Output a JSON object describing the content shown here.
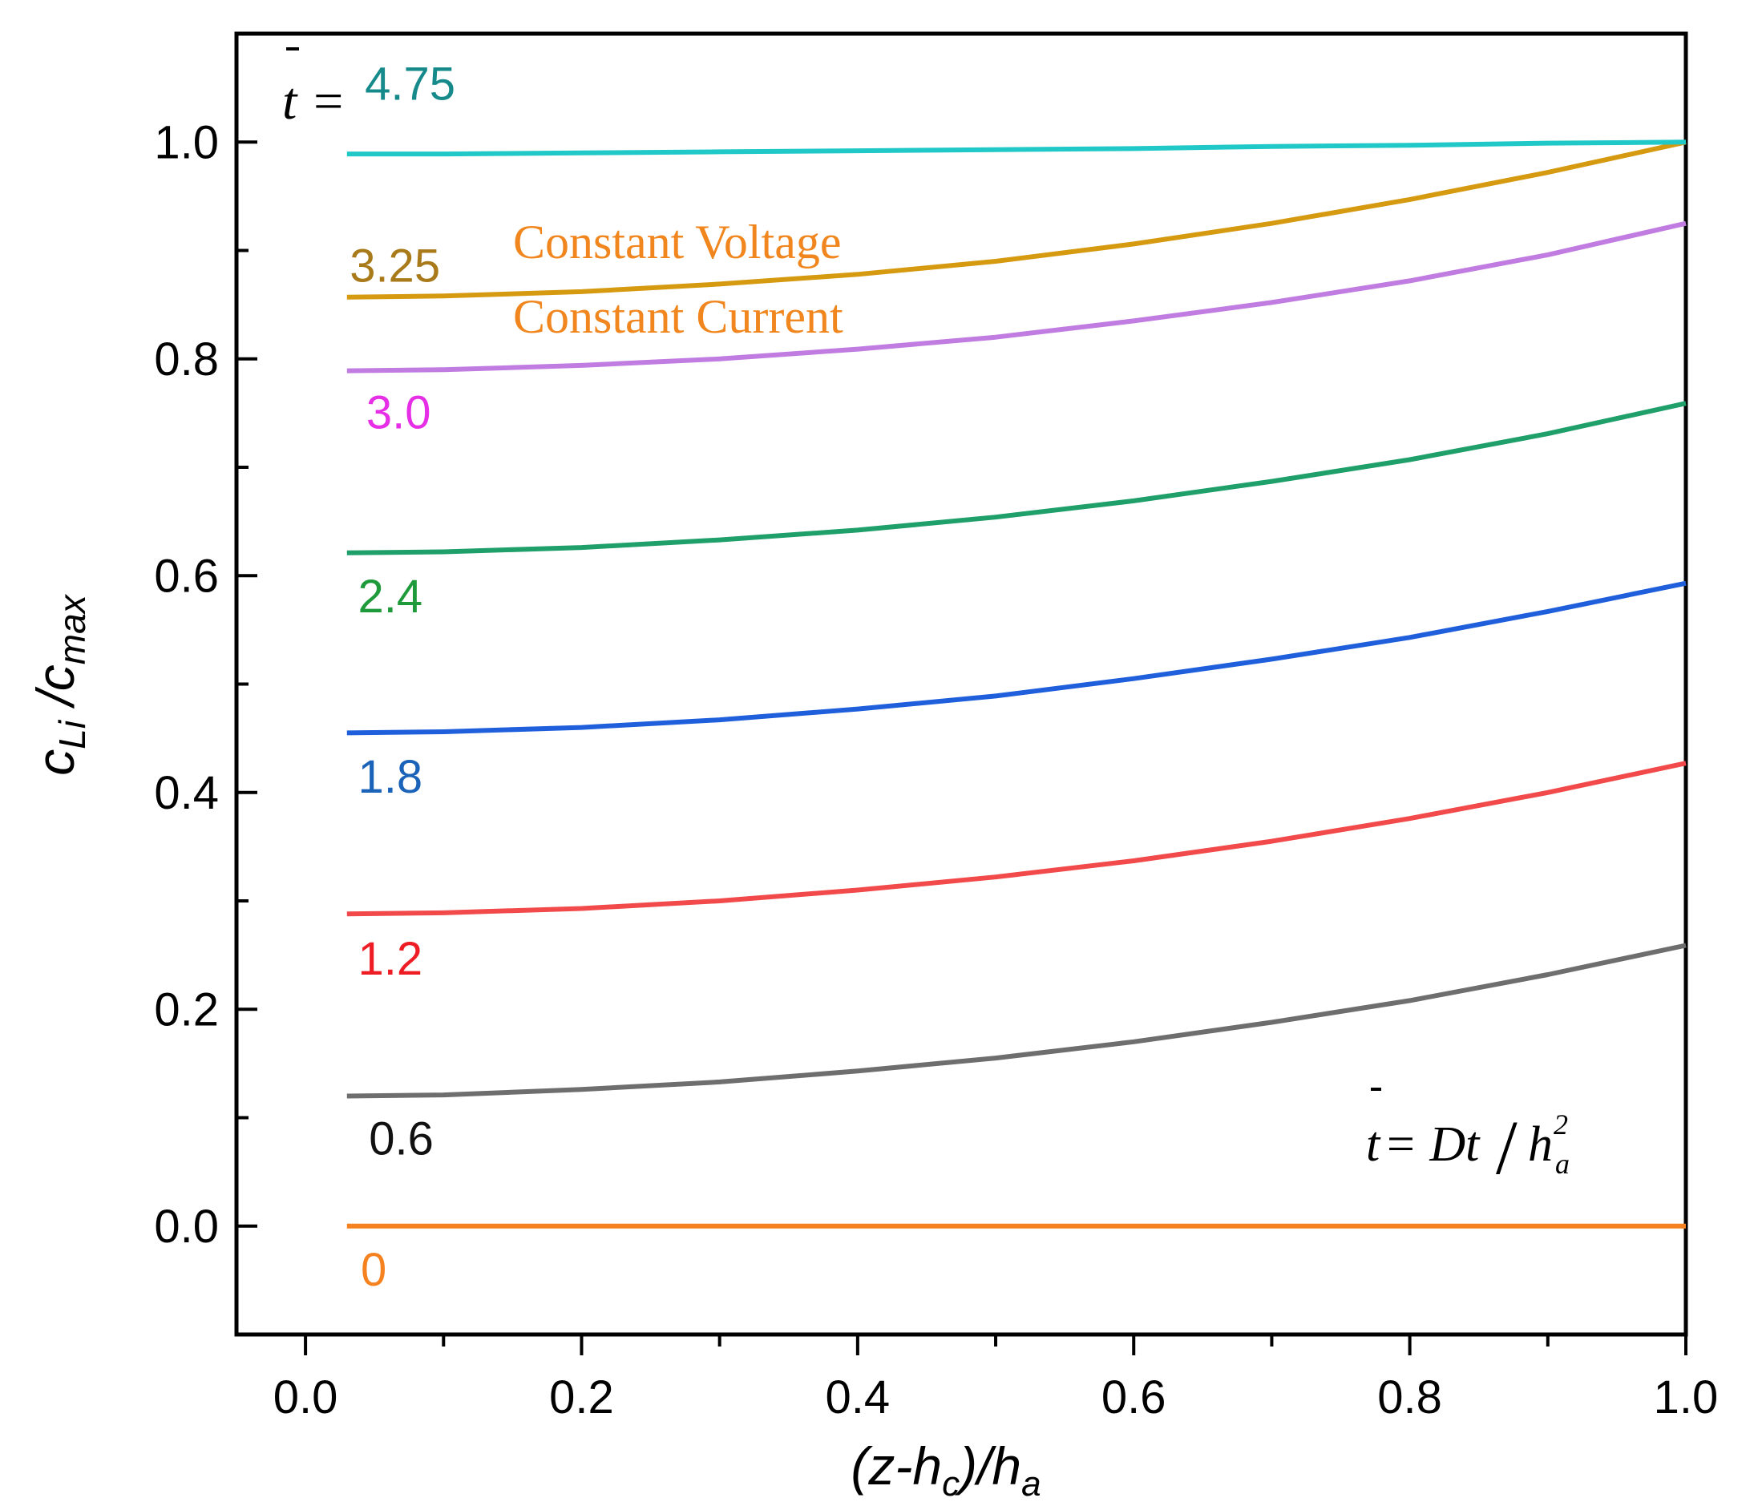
{
  "chart_data": {
    "type": "line",
    "title": "",
    "xlabel": "(z-h_c)/h_a",
    "ylabel": "c_Li /c_max",
    "xlim": [
      -0.05,
      1.0
    ],
    "ylim": [
      -0.1,
      1.1
    ],
    "x_ticks": [
      "0.0",
      "0.2",
      "0.4",
      "0.6",
      "0.8",
      "1.0"
    ],
    "y_ticks": [
      "0.0",
      "0.2",
      "0.4",
      "0.6",
      "0.8",
      "1.0"
    ],
    "x": [
      0.03,
      0.1,
      0.2,
      0.3,
      0.4,
      0.5,
      0.6,
      0.7,
      0.8,
      0.9,
      1.0
    ],
    "series": [
      {
        "name": "0",
        "label": "0",
        "color": "#f5821f",
        "label_color": "#f5821f",
        "values": [
          0.0,
          0.0,
          0.0,
          0.0,
          0.0,
          0.0,
          0.0,
          0.0,
          0.0,
          0.0,
          0.0
        ]
      },
      {
        "name": "0.6",
        "label": "0.6",
        "color": "#6e6e6e",
        "label_color": "#111111",
        "values": [
          0.12,
          0.121,
          0.126,
          0.133,
          0.143,
          0.155,
          0.17,
          0.188,
          0.208,
          0.232,
          0.259
        ]
      },
      {
        "name": "1.2",
        "label": "1.2",
        "color": "#f24a4a",
        "label_color": "#ee1c24",
        "values": [
          0.288,
          0.289,
          0.293,
          0.3,
          0.31,
          0.322,
          0.337,
          0.355,
          0.376,
          0.4,
          0.427
        ]
      },
      {
        "name": "1.8",
        "label": "1.8",
        "color": "#1f5fdc",
        "label_color": "#1b63b8",
        "values": [
          0.455,
          0.456,
          0.46,
          0.467,
          0.477,
          0.489,
          0.505,
          0.523,
          0.543,
          0.567,
          0.593
        ]
      },
      {
        "name": "2.4",
        "label": "2.4",
        "color": "#1f9f6a",
        "label_color": "#1f9a3a",
        "values": [
          0.621,
          0.622,
          0.626,
          0.633,
          0.642,
          0.654,
          0.669,
          0.687,
          0.707,
          0.731,
          0.759
        ]
      },
      {
        "name": "3.0",
        "label": "3.0",
        "color": "#c07ce0",
        "label_color": "#e62ee6",
        "values": [
          0.789,
          0.79,
          0.794,
          0.8,
          0.809,
          0.82,
          0.835,
          0.852,
          0.872,
          0.896,
          0.925
        ]
      },
      {
        "name": "3.25",
        "label": "3.25",
        "color": "#d69a10",
        "label_color": "#a87a1a",
        "values": [
          0.857,
          0.858,
          0.862,
          0.869,
          0.878,
          0.89,
          0.906,
          0.925,
          0.947,
          0.972,
          1.0
        ]
      },
      {
        "name": "4.75",
        "label": "4.75",
        "color": "#20c8c8",
        "label_color": "#168a8a",
        "values": [
          0.989,
          0.989,
          0.99,
          0.991,
          0.992,
          0.993,
          0.994,
          0.996,
          0.997,
          0.999,
          1.0
        ]
      }
    ],
    "annotations": {
      "t_prefix": "t = ",
      "constant_voltage": "Constant Voltage",
      "constant_current": "Constant Current",
      "formula_lhs": "t",
      "formula_eq": " = Dt",
      "formula_slash": "/",
      "formula_h": "h",
      "formula_sup": "2",
      "formula_sub": "a"
    },
    "legend": "none",
    "grid": false
  }
}
